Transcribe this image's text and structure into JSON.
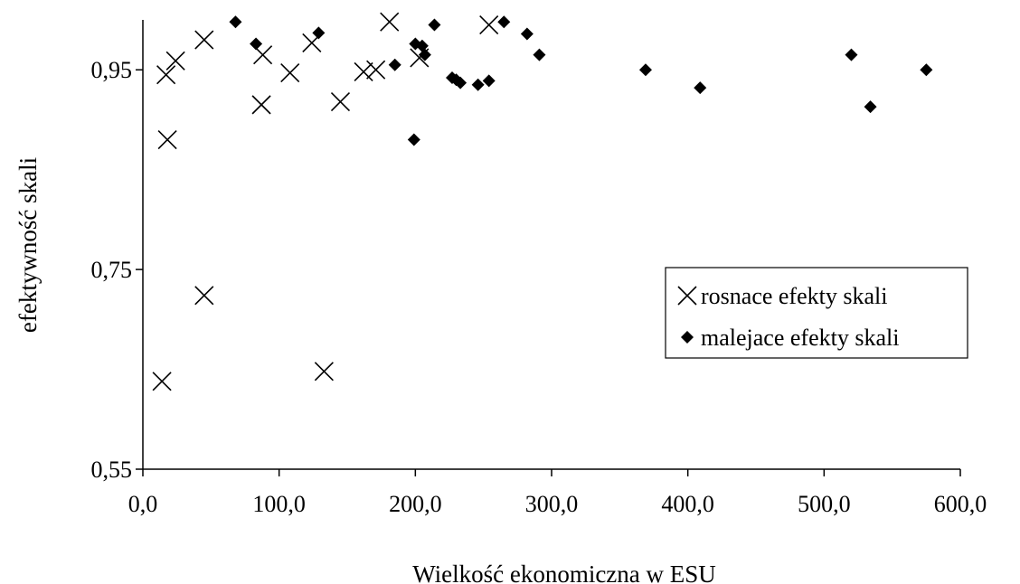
{
  "chart_data": {
    "type": "scatter",
    "title": "",
    "xlabel": "Wielkość ekonomiczna w ESU",
    "ylabel": "efektywność skali",
    "xlim": [
      0,
      600
    ],
    "ylim": [
      0.55,
      1.0
    ],
    "x_ticks": [
      0,
      100,
      200,
      300,
      400,
      500,
      600
    ],
    "x_tick_labels": [
      "0,0",
      "100,0",
      "200,0",
      "300,0",
      "400,0",
      "500,0",
      "600,0"
    ],
    "y_ticks": [
      0.55,
      0.75,
      0.95
    ],
    "y_tick_labels": [
      "0,55",
      "0,75",
      "0,95"
    ],
    "grid": false,
    "legend_position": "right-center",
    "series": [
      {
        "name": "rosnace efekty skali",
        "marker": "x",
        "color": "#000000",
        "points": [
          [
            14,
            0.638
          ],
          [
            17,
            0.945
          ],
          [
            18,
            0.88
          ],
          [
            24,
            0.959
          ],
          [
            45,
            0.98
          ],
          [
            45,
            0.724
          ],
          [
            87,
            0.915
          ],
          [
            88,
            0.965
          ],
          [
            108,
            0.947
          ],
          [
            124,
            0.977
          ],
          [
            133,
            0.648
          ],
          [
            145,
            0.918
          ],
          [
            162,
            0.948
          ],
          [
            171,
            0.95
          ],
          [
            181,
            0.998
          ],
          [
            203,
            0.962
          ],
          [
            254,
            0.995
          ]
        ]
      },
      {
        "name": "malejace efekty skali",
        "marker": "diamond",
        "color": "#000000",
        "points": [
          [
            68,
            0.998
          ],
          [
            83,
            0.976
          ],
          [
            129,
            0.987
          ],
          [
            185,
            0.955
          ],
          [
            199,
            0.88
          ],
          [
            200,
            0.976
          ],
          [
            205,
            0.974
          ],
          [
            207,
            0.965
          ],
          [
            214,
            0.995
          ],
          [
            227,
            0.942
          ],
          [
            230,
            0.94
          ],
          [
            233,
            0.937
          ],
          [
            246,
            0.935
          ],
          [
            254,
            0.939
          ],
          [
            265,
            0.998
          ],
          [
            282,
            0.986
          ],
          [
            291,
            0.965
          ],
          [
            369,
            0.95
          ],
          [
            409,
            0.932
          ],
          [
            520,
            0.965
          ],
          [
            534,
            0.913
          ],
          [
            575,
            0.95
          ]
        ]
      }
    ]
  }
}
